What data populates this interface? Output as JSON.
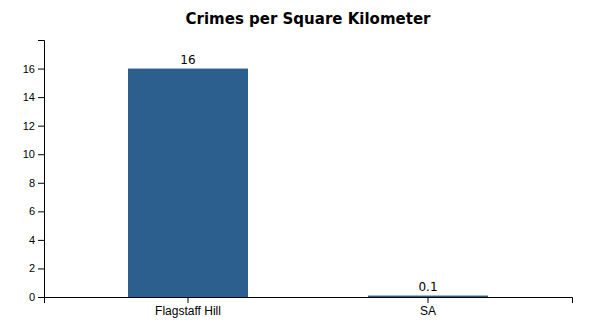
{
  "chart_data": {
    "type": "bar",
    "title": "Crimes per Square Kilometer",
    "categories": [
      "Flagstaff Hill",
      "SA"
    ],
    "values": [
      16,
      0.1
    ],
    "color": "#2d5f8e",
    "ylim": [
      0,
      18
    ],
    "yticks": [
      0,
      2,
      4,
      6,
      8,
      10,
      12,
      14,
      16
    ],
    "grid": false,
    "data_labels": true
  }
}
